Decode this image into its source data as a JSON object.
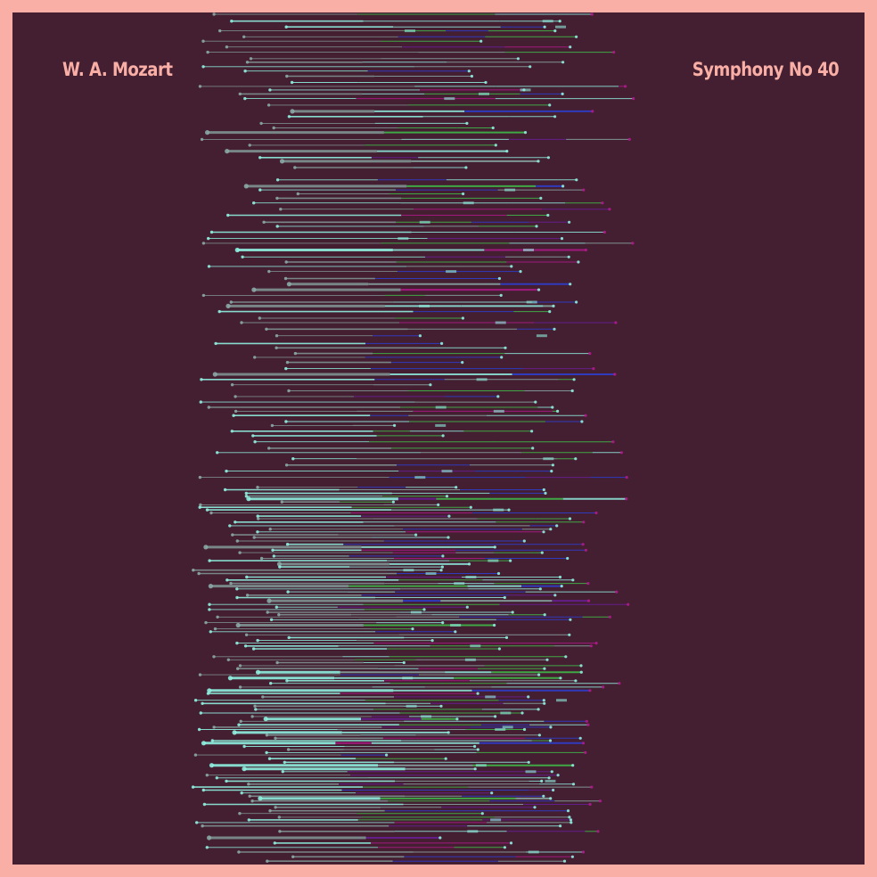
{
  "artwork": {
    "composer": "W. A. Mozart",
    "piece": "Symphony No 40",
    "style": "piano-roll barcode of note durations, one horizontal line per note, mirrored stereo-like spread",
    "colors": {
      "frame": "#F9AFA6",
      "background": "#441E31",
      "primary_line": "#8FEFE0",
      "muted_line": "#8AA9A6",
      "accent_green": "#3FBF4A",
      "accent_blue": "#2D3FD6",
      "accent_purple": "#6A1E9A",
      "accent_magenta": "#B01A8C",
      "dot": "#8FEFE0"
    }
  }
}
